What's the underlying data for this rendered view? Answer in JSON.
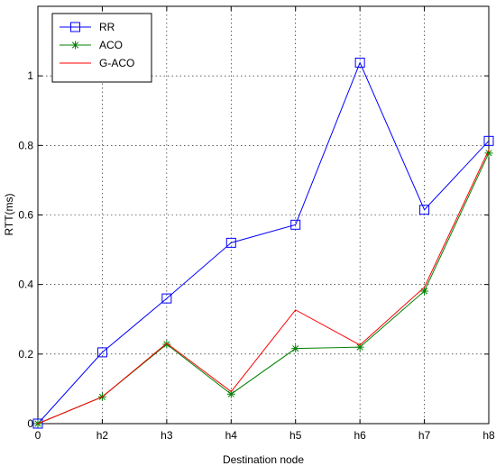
{
  "chart_data": {
    "type": "line",
    "title": "",
    "xlabel": "Destination node",
    "ylabel": "RTT(ms)",
    "categories": [
      "0",
      "h2",
      "h3",
      "h4",
      "h5",
      "h6",
      "h7",
      "h8"
    ],
    "ylim": [
      0,
      1.2
    ],
    "yticks": [
      "0",
      "0.2",
      "0.4",
      "0.6",
      "0.8",
      "1"
    ],
    "grid": true,
    "legend_position": "top-left",
    "series": [
      {
        "name": "RR",
        "color": "#0000ff",
        "marker": "square",
        "values": [
          0.0,
          0.205,
          0.36,
          0.52,
          0.572,
          1.038,
          0.615,
          0.813
        ]
      },
      {
        "name": "ACO",
        "color": "#008000",
        "marker": "star",
        "values": [
          0.0,
          0.077,
          0.228,
          0.085,
          0.216,
          0.22,
          0.381,
          0.778
        ]
      },
      {
        "name": "G-ACO",
        "color": "#ff0000",
        "marker": "none",
        "values": [
          0.0,
          0.077,
          0.231,
          0.092,
          0.327,
          0.226,
          0.392,
          0.787
        ]
      }
    ]
  }
}
